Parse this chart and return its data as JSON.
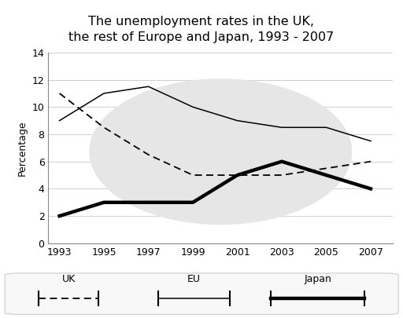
{
  "title": "The unemployment rates in the UK,\nthe rest of Europe and Japan, 1993 - 2007",
  "ylabel": "Percentage",
  "years": [
    1993,
    1995,
    1997,
    1999,
    2001,
    2003,
    2005,
    2007
  ],
  "uk_data": [
    11.0,
    8.5,
    6.5,
    5.0,
    5.0,
    5.0,
    5.5,
    6.0
  ],
  "eu_data": [
    9.0,
    11.0,
    11.5,
    10.0,
    9.0,
    8.5,
    8.5,
    7.5
  ],
  "japan_data": [
    2.0,
    3.0,
    3.0,
    3.0,
    5.0,
    6.0,
    5.0,
    4.0
  ],
  "ylim": [
    0,
    14
  ],
  "yticks": [
    0,
    2,
    4,
    6,
    8,
    10,
    12,
    14
  ],
  "xlim": [
    1992.5,
    2008
  ],
  "background_color": "#ffffff",
  "grid_color": "#d0d0d0",
  "watermark_color": "#e6e6e6",
  "title_fontsize": 11.5,
  "axis_fontsize": 9,
  "ylabel_fontsize": 9
}
